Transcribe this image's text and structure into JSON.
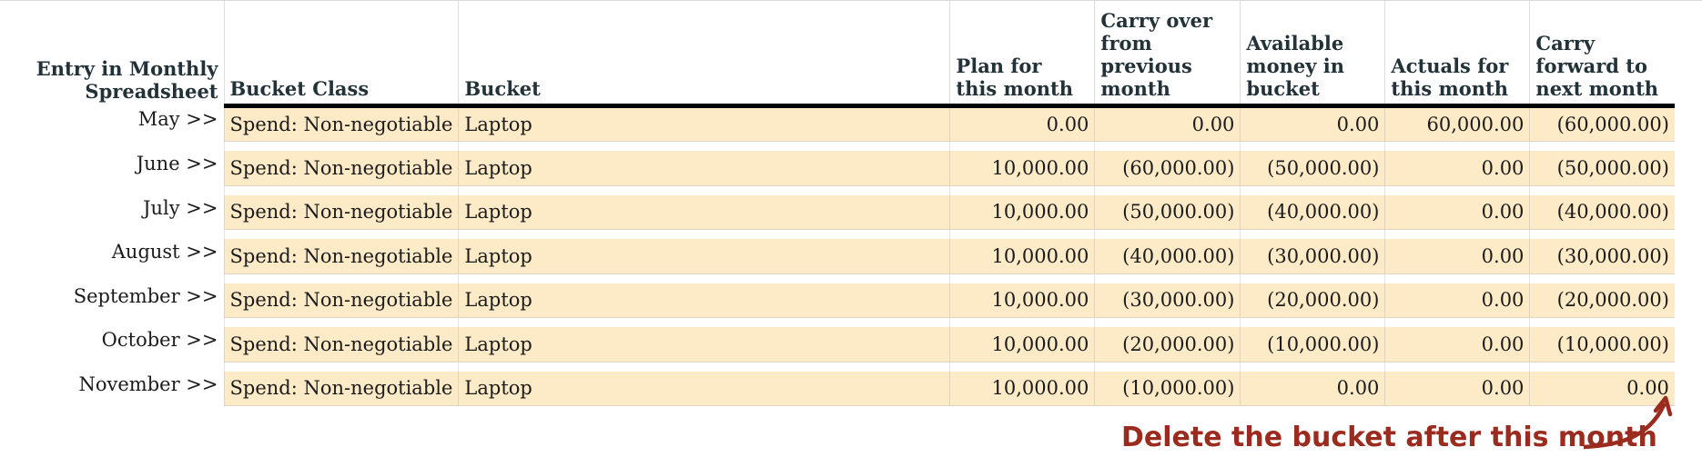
{
  "columns": {
    "entry": "Entry in Monthly Spreadsheet",
    "bucket_class": "Bucket Class",
    "bucket": "Bucket",
    "plan": "Plan for this month",
    "carry_over": "Carry over from previous month",
    "available": "Available money in bucket",
    "actuals": "Actuals for this month",
    "carry_forward": "Carry forward to next month"
  },
  "rows": [
    {
      "entry": "May >>",
      "bucket_class": "Spend: Non-negotiable",
      "bucket": "Laptop",
      "plan": "0.00",
      "carry_over": "0.00",
      "available": "0.00",
      "actuals": "60,000.00",
      "carry_forward": "(60,000.00)"
    },
    {
      "entry": "June >>",
      "bucket_class": "Spend: Non-negotiable",
      "bucket": "Laptop",
      "plan": "10,000.00",
      "carry_over": "(60,000.00)",
      "available": "(50,000.00)",
      "actuals": "0.00",
      "carry_forward": "(50,000.00)"
    },
    {
      "entry": "July >>",
      "bucket_class": "Spend: Non-negotiable",
      "bucket": "Laptop",
      "plan": "10,000.00",
      "carry_over": "(50,000.00)",
      "available": "(40,000.00)",
      "actuals": "0.00",
      "carry_forward": "(40,000.00)"
    },
    {
      "entry": "August >>",
      "bucket_class": "Spend: Non-negotiable",
      "bucket": "Laptop",
      "plan": "10,000.00",
      "carry_over": "(40,000.00)",
      "available": "(30,000.00)",
      "actuals": "0.00",
      "carry_forward": "(30,000.00)"
    },
    {
      "entry": "September >>",
      "bucket_class": "Spend: Non-negotiable",
      "bucket": "Laptop",
      "plan": "10,000.00",
      "carry_over": "(30,000.00)",
      "available": "(20,000.00)",
      "actuals": "0.00",
      "carry_forward": "(20,000.00)"
    },
    {
      "entry": "October >>",
      "bucket_class": "Spend: Non-negotiable",
      "bucket": "Laptop",
      "plan": "10,000.00",
      "carry_over": "(20,000.00)",
      "available": "(10,000.00)",
      "actuals": "0.00",
      "carry_forward": "(10,000.00)"
    },
    {
      "entry": "November >>",
      "bucket_class": "Spend: Non-negotiable",
      "bucket": "Laptop",
      "plan": "10,000.00",
      "carry_over": "(10,000.00)",
      "available": "0.00",
      "actuals": "0.00",
      "carry_forward": "0.00"
    }
  ],
  "annotation": {
    "text": "Delete the bucket after this month",
    "color": "#9b2b1e"
  },
  "colors": {
    "row_fill": "#fdebc8",
    "header_text": "#223238",
    "header_rule": "#000000"
  },
  "icons": {
    "annotation_arrow": "curved-arrow-icon"
  }
}
